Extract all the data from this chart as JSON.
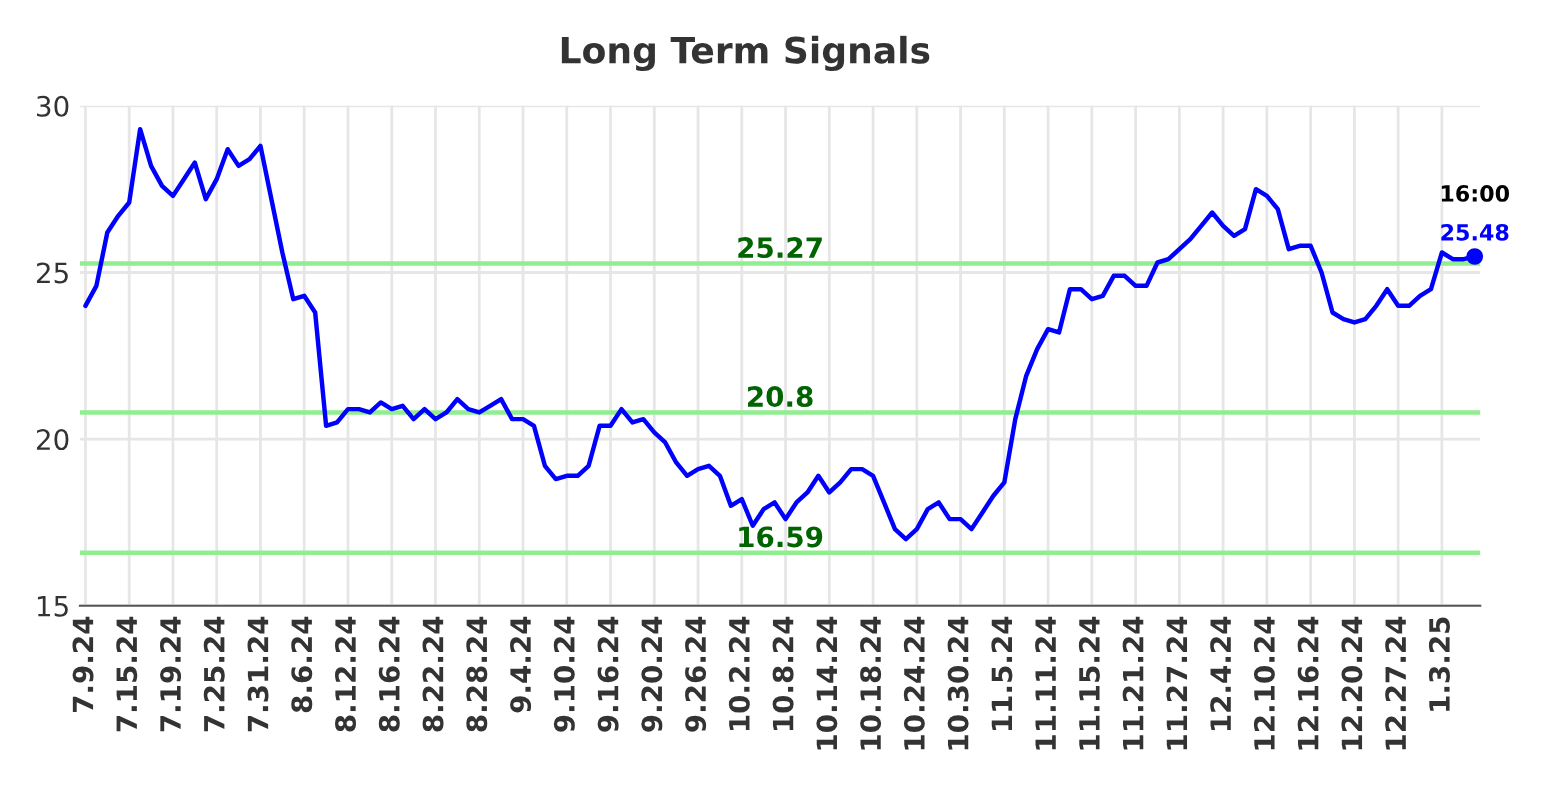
{
  "chart_data": {
    "type": "line",
    "title": "Long Term Signals",
    "categories": [
      "7.9.24",
      null,
      null,
      null,
      "7.15.24",
      null,
      null,
      null,
      "7.19.24",
      null,
      null,
      null,
      "7.25.24",
      null,
      null,
      null,
      "7.31.24",
      null,
      null,
      null,
      "8.6.24",
      null,
      null,
      null,
      "8.12.24",
      null,
      null,
      null,
      "8.16.24",
      null,
      null,
      null,
      "8.22.24",
      null,
      null,
      null,
      "8.28.24",
      null,
      null,
      null,
      "9.4.24",
      null,
      null,
      null,
      "9.10.24",
      null,
      null,
      null,
      "9.16.24",
      null,
      null,
      null,
      "9.20.24",
      null,
      null,
      null,
      "9.26.24",
      null,
      null,
      null,
      "10.2.24",
      null,
      null,
      null,
      "10.8.24",
      null,
      null,
      null,
      "10.14.24",
      null,
      null,
      null,
      "10.18.24",
      null,
      null,
      null,
      "10.24.24",
      null,
      null,
      null,
      "10.30.24",
      null,
      null,
      null,
      "11.5.24",
      null,
      null,
      null,
      "11.11.24",
      null,
      null,
      null,
      "11.15.24",
      null,
      null,
      null,
      "11.21.24",
      null,
      null,
      null,
      "11.27.24",
      null,
      null,
      null,
      "12.4.24",
      null,
      null,
      null,
      "12.10.24",
      null,
      null,
      null,
      "12.16.24",
      null,
      null,
      null,
      "12.20.24",
      null,
      null,
      null,
      "12.27.24",
      null,
      null,
      null,
      "1.3.25",
      null,
      null,
      null
    ],
    "series": [
      {
        "color": "#0000ff",
        "values": [
          24.0,
          24.6,
          26.2,
          26.7,
          27.1,
          29.3,
          28.2,
          27.6,
          27.3,
          27.8,
          28.3,
          27.2,
          27.8,
          28.7,
          28.2,
          28.4,
          28.8,
          27.2,
          25.6,
          24.2,
          24.3,
          23.8,
          20.4,
          20.5,
          20.9,
          20.9,
          20.8,
          21.1,
          20.9,
          21.0,
          20.6,
          20.9,
          20.6,
          20.8,
          21.2,
          20.9,
          20.8,
          21.0,
          21.2,
          20.6,
          20.6,
          20.4,
          19.2,
          18.8,
          18.9,
          18.9,
          19.2,
          20.4,
          20.4,
          20.9,
          20.5,
          20.6,
          20.2,
          19.9,
          19.3,
          18.9,
          19.1,
          19.2,
          18.9,
          18.0,
          18.2,
          17.4,
          17.9,
          18.1,
          17.6,
          18.1,
          18.4,
          18.9,
          18.4,
          18.7,
          19.1,
          19.1,
          18.9,
          18.1,
          17.3,
          17.0,
          17.3,
          17.9,
          18.1,
          17.6,
          17.6,
          17.3,
          17.8,
          18.3,
          18.7,
          20.6,
          21.9,
          22.7,
          23.3,
          23.2,
          24.5,
          24.5,
          24.2,
          24.3,
          24.9,
          24.9,
          24.6,
          24.6,
          25.3,
          25.4,
          25.7,
          26.0,
          26.4,
          26.8,
          26.4,
          26.1,
          26.3,
          27.5,
          27.3,
          26.9,
          25.7,
          25.8,
          25.8,
          25.0,
          23.8,
          23.6,
          23.5,
          23.6,
          24.0,
          24.5,
          24.0,
          24.0,
          24.3,
          24.5,
          25.6,
          25.4,
          25.4,
          25.48
        ]
      }
    ],
    "ylim": [
      15,
      30
    ],
    "yticks": [
      15,
      20,
      25,
      30
    ],
    "grid": true,
    "marker": "none",
    "line_style": "solid",
    "ref_lines": [
      {
        "axis": "y",
        "value": 25.27,
        "label": "25.27",
        "color": "#90ee90"
      },
      {
        "axis": "y",
        "value": 20.8,
        "label": "20.8",
        "color": "#90ee90"
      },
      {
        "axis": "y",
        "value": 16.59,
        "label": "16.59",
        "color": "#90ee90"
      }
    ],
    "annotations": [
      {
        "text": "16:00",
        "y": 25.48
      },
      {
        "text": "25.48",
        "y": 25.48
      }
    ]
  }
}
